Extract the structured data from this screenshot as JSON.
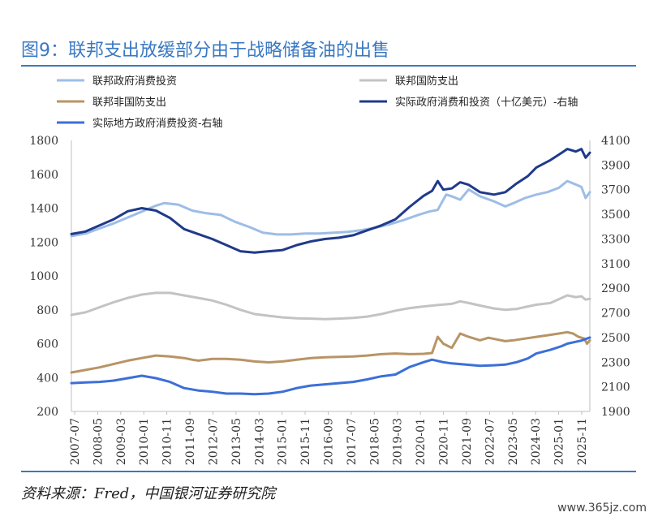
{
  "title": "图9：联邦支出放缓部分由于战略储备油的出售",
  "source": "资料来源：Fred，中国银河证券研究院",
  "watermark": "www.365jz.com",
  "chart_data": {
    "type": "line",
    "title": "图9：联邦支出放缓部分由于战略储备油的出售",
    "x_labels": [
      "2007-07",
      "2008-05",
      "2009-03",
      "2010-01",
      "2010-11",
      "2011-09",
      "2012-07",
      "2013-05",
      "2014-03",
      "2015-01",
      "2015-11",
      "2016-09",
      "2017-07",
      "2018-05",
      "2019-03",
      "2020-01",
      "2020-11",
      "2021-09",
      "2022-07",
      "2023-05",
      "2024-03",
      "2025-01",
      "2025-11"
    ],
    "x_range": [
      2007.5,
      2025.9
    ],
    "left_axis": {
      "range": [
        200,
        1800
      ],
      "ticks": [
        200,
        400,
        600,
        800,
        1000,
        1200,
        1400,
        1600,
        1800
      ]
    },
    "right_axis": {
      "range": [
        1900,
        4100
      ],
      "ticks": [
        1900,
        2100,
        2300,
        2500,
        2700,
        2900,
        3100,
        3300,
        3500,
        3700,
        3900,
        4100
      ]
    },
    "legend_position": "top",
    "series": [
      {
        "name": "联邦政府消费投资",
        "axis": "left",
        "color": "#9dbde6",
        "points": [
          [
            2007.5,
            1235
          ],
          [
            2008.0,
            1250
          ],
          [
            2008.5,
            1280
          ],
          [
            2009.0,
            1310
          ],
          [
            2009.5,
            1345
          ],
          [
            2010.0,
            1380
          ],
          [
            2010.5,
            1415
          ],
          [
            2010.8,
            1430
          ],
          [
            2011.3,
            1420
          ],
          [
            2011.8,
            1385
          ],
          [
            2012.3,
            1370
          ],
          [
            2012.8,
            1360
          ],
          [
            2013.3,
            1320
          ],
          [
            2013.8,
            1290
          ],
          [
            2014.3,
            1255
          ],
          [
            2014.8,
            1245
          ],
          [
            2015.3,
            1245
          ],
          [
            2015.8,
            1250
          ],
          [
            2016.3,
            1250
          ],
          [
            2016.8,
            1255
          ],
          [
            2017.3,
            1260
          ],
          [
            2017.8,
            1270
          ],
          [
            2018.3,
            1285
          ],
          [
            2018.8,
            1305
          ],
          [
            2019.3,
            1330
          ],
          [
            2019.8,
            1360
          ],
          [
            2020.2,
            1380
          ],
          [
            2020.5,
            1390
          ],
          [
            2020.8,
            1480
          ],
          [
            2021.0,
            1470
          ],
          [
            2021.3,
            1450
          ],
          [
            2021.6,
            1510
          ],
          [
            2022.0,
            1470
          ],
          [
            2022.5,
            1440
          ],
          [
            2022.9,
            1410
          ],
          [
            2023.2,
            1430
          ],
          [
            2023.6,
            1460
          ],
          [
            2024.0,
            1480
          ],
          [
            2024.4,
            1495
          ],
          [
            2024.8,
            1520
          ],
          [
            2025.1,
            1560
          ],
          [
            2025.4,
            1540
          ],
          [
            2025.6,
            1525
          ],
          [
            2025.75,
            1460
          ],
          [
            2025.9,
            1495
          ]
        ]
      },
      {
        "name": "联邦国防支出",
        "axis": "left",
        "color": "#c3c3c3",
        "points": [
          [
            2007.5,
            770
          ],
          [
            2008.0,
            785
          ],
          [
            2008.5,
            815
          ],
          [
            2009.0,
            845
          ],
          [
            2009.5,
            870
          ],
          [
            2010.0,
            890
          ],
          [
            2010.5,
            900
          ],
          [
            2011.0,
            900
          ],
          [
            2011.5,
            885
          ],
          [
            2012.0,
            870
          ],
          [
            2012.5,
            855
          ],
          [
            2013.0,
            830
          ],
          [
            2013.5,
            800
          ],
          [
            2014.0,
            775
          ],
          [
            2014.5,
            765
          ],
          [
            2015.0,
            755
          ],
          [
            2015.5,
            750
          ],
          [
            2016.0,
            748
          ],
          [
            2016.5,
            745
          ],
          [
            2017.0,
            748
          ],
          [
            2017.5,
            752
          ],
          [
            2018.0,
            760
          ],
          [
            2018.5,
            775
          ],
          [
            2019.0,
            795
          ],
          [
            2019.5,
            810
          ],
          [
            2020.0,
            820
          ],
          [
            2020.5,
            828
          ],
          [
            2021.0,
            835
          ],
          [
            2021.3,
            850
          ],
          [
            2021.6,
            840
          ],
          [
            2022.0,
            825
          ],
          [
            2022.5,
            808
          ],
          [
            2022.9,
            800
          ],
          [
            2023.3,
            805
          ],
          [
            2023.7,
            820
          ],
          [
            2024.0,
            830
          ],
          [
            2024.5,
            840
          ],
          [
            2024.9,
            870
          ],
          [
            2025.1,
            885
          ],
          [
            2025.4,
            875
          ],
          [
            2025.6,
            880
          ],
          [
            2025.75,
            860
          ],
          [
            2025.9,
            865
          ]
        ]
      },
      {
        "name": "联邦非国防支出",
        "axis": "left",
        "color": "#b89465",
        "points": [
          [
            2007.5,
            430
          ],
          [
            2008.0,
            445
          ],
          [
            2008.5,
            460
          ],
          [
            2009.0,
            480
          ],
          [
            2009.5,
            500
          ],
          [
            2010.0,
            515
          ],
          [
            2010.5,
            530
          ],
          [
            2011.0,
            525
          ],
          [
            2011.5,
            515
          ],
          [
            2011.8,
            505
          ],
          [
            2012.0,
            500
          ],
          [
            2012.5,
            510
          ],
          [
            2013.0,
            510
          ],
          [
            2013.5,
            505
          ],
          [
            2014.0,
            495
          ],
          [
            2014.5,
            490
          ],
          [
            2015.0,
            495
          ],
          [
            2015.5,
            505
          ],
          [
            2016.0,
            515
          ],
          [
            2016.5,
            520
          ],
          [
            2017.0,
            522
          ],
          [
            2017.5,
            525
          ],
          [
            2018.0,
            530
          ],
          [
            2018.5,
            538
          ],
          [
            2019.0,
            542
          ],
          [
            2019.5,
            538
          ],
          [
            2020.0,
            540
          ],
          [
            2020.3,
            545
          ],
          [
            2020.5,
            640
          ],
          [
            2020.7,
            600
          ],
          [
            2021.0,
            575
          ],
          [
            2021.3,
            660
          ],
          [
            2021.6,
            640
          ],
          [
            2022.0,
            620
          ],
          [
            2022.3,
            635
          ],
          [
            2022.6,
            625
          ],
          [
            2022.9,
            615
          ],
          [
            2023.2,
            620
          ],
          [
            2023.6,
            630
          ],
          [
            2024.0,
            640
          ],
          [
            2024.4,
            650
          ],
          [
            2024.8,
            660
          ],
          [
            2025.1,
            668
          ],
          [
            2025.3,
            660
          ],
          [
            2025.5,
            640
          ],
          [
            2025.7,
            630
          ],
          [
            2025.8,
            600
          ],
          [
            2025.9,
            620
          ]
        ]
      },
      {
        "name": "实际政府消费和投资（十亿美元）-右轴",
        "axis": "right",
        "color": "#1f3a8a",
        "points": [
          [
            2007.5,
            3340
          ],
          [
            2008.0,
            3360
          ],
          [
            2008.5,
            3410
          ],
          [
            2009.0,
            3460
          ],
          [
            2009.5,
            3525
          ],
          [
            2010.0,
            3550
          ],
          [
            2010.5,
            3530
          ],
          [
            2011.0,
            3470
          ],
          [
            2011.5,
            3380
          ],
          [
            2012.0,
            3340
          ],
          [
            2012.5,
            3300
          ],
          [
            2013.0,
            3250
          ],
          [
            2013.5,
            3200
          ],
          [
            2014.0,
            3190
          ],
          [
            2014.5,
            3200
          ],
          [
            2015.0,
            3210
          ],
          [
            2015.5,
            3250
          ],
          [
            2016.0,
            3280
          ],
          [
            2016.5,
            3300
          ],
          [
            2017.0,
            3310
          ],
          [
            2017.5,
            3330
          ],
          [
            2018.0,
            3370
          ],
          [
            2018.5,
            3410
          ],
          [
            2019.0,
            3460
          ],
          [
            2019.5,
            3560
          ],
          [
            2020.0,
            3650
          ],
          [
            2020.3,
            3690
          ],
          [
            2020.5,
            3770
          ],
          [
            2020.7,
            3700
          ],
          [
            2021.0,
            3710
          ],
          [
            2021.3,
            3760
          ],
          [
            2021.6,
            3740
          ],
          [
            2022.0,
            3680
          ],
          [
            2022.5,
            3660
          ],
          [
            2022.9,
            3680
          ],
          [
            2023.3,
            3750
          ],
          [
            2023.7,
            3810
          ],
          [
            2024.0,
            3880
          ],
          [
            2024.5,
            3940
          ],
          [
            2024.9,
            4000
          ],
          [
            2025.1,
            4030
          ],
          [
            2025.4,
            4010
          ],
          [
            2025.6,
            4030
          ],
          [
            2025.75,
            3960
          ],
          [
            2025.9,
            4000
          ]
        ]
      },
      {
        "name": "实际地方政府消费投资-右轴",
        "axis": "right",
        "color": "#3c6fd8",
        "points": [
          [
            2007.5,
            2130
          ],
          [
            2008.0,
            2135
          ],
          [
            2008.5,
            2140
          ],
          [
            2009.0,
            2150
          ],
          [
            2009.5,
            2170
          ],
          [
            2010.0,
            2190
          ],
          [
            2010.5,
            2170
          ],
          [
            2011.0,
            2140
          ],
          [
            2011.5,
            2090
          ],
          [
            2012.0,
            2070
          ],
          [
            2012.5,
            2060
          ],
          [
            2013.0,
            2045
          ],
          [
            2013.5,
            2045
          ],
          [
            2014.0,
            2040
          ],
          [
            2014.5,
            2045
          ],
          [
            2015.0,
            2060
          ],
          [
            2015.5,
            2090
          ],
          [
            2016.0,
            2110
          ],
          [
            2016.5,
            2120
          ],
          [
            2017.0,
            2130
          ],
          [
            2017.5,
            2140
          ],
          [
            2018.0,
            2160
          ],
          [
            2018.5,
            2185
          ],
          [
            2019.0,
            2200
          ],
          [
            2019.5,
            2260
          ],
          [
            2020.0,
            2300
          ],
          [
            2020.3,
            2320
          ],
          [
            2020.7,
            2300
          ],
          [
            2021.0,
            2290
          ],
          [
            2021.5,
            2280
          ],
          [
            2022.0,
            2270
          ],
          [
            2022.5,
            2275
          ],
          [
            2022.9,
            2280
          ],
          [
            2023.3,
            2300
          ],
          [
            2023.7,
            2330
          ],
          [
            2024.0,
            2370
          ],
          [
            2024.5,
            2400
          ],
          [
            2024.9,
            2430
          ],
          [
            2025.1,
            2450
          ],
          [
            2025.4,
            2465
          ],
          [
            2025.6,
            2475
          ],
          [
            2025.9,
            2500
          ]
        ]
      }
    ]
  }
}
